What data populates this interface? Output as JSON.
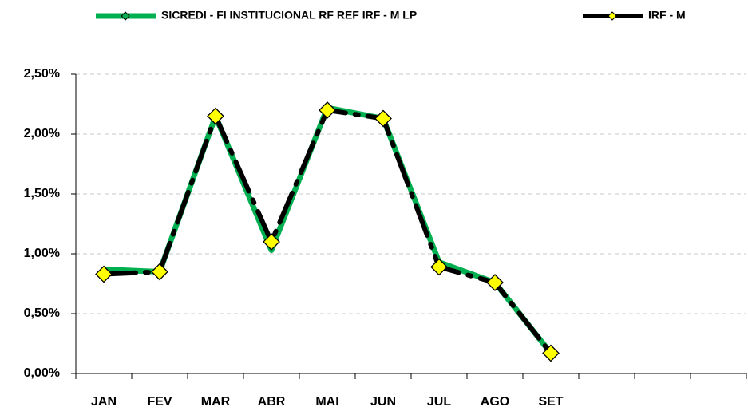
{
  "chart_data": {
    "type": "line",
    "categories": [
      "JAN",
      "FEV",
      "MAR",
      "ABR",
      "MAI",
      "JUN",
      "JUL",
      "AGO",
      "SET",
      null,
      null,
      null
    ],
    "series": [
      {
        "name": "SICREDI - FI INSTITUCIONAL RF REF IRF - M LP",
        "color": "#00b050",
        "values": [
          0.87,
          0.85,
          2.15,
          1.03,
          2.22,
          2.13,
          0.93,
          0.76,
          0.17,
          null,
          null,
          null
        ]
      },
      {
        "name": "IRF - M",
        "color": "#000000",
        "values": [
          0.83,
          0.85,
          2.15,
          1.1,
          2.2,
          2.13,
          0.89,
          0.76,
          0.17,
          null,
          null,
          null
        ]
      }
    ],
    "marker_color": "#ffff00",
    "ylim": [
      0,
      2.5
    ],
    "yticks": [
      {
        "value": 0,
        "label": "0,00%"
      },
      {
        "value": 0.5,
        "label": "0,50%"
      },
      {
        "value": 1,
        "label": "1,00%"
      },
      {
        "value": 1.5,
        "label": "1,50%"
      },
      {
        "value": 2,
        "label": "2,00%"
      },
      {
        "value": 2.5,
        "label": "2,50%"
      }
    ],
    "grid": true,
    "legend": "top"
  }
}
